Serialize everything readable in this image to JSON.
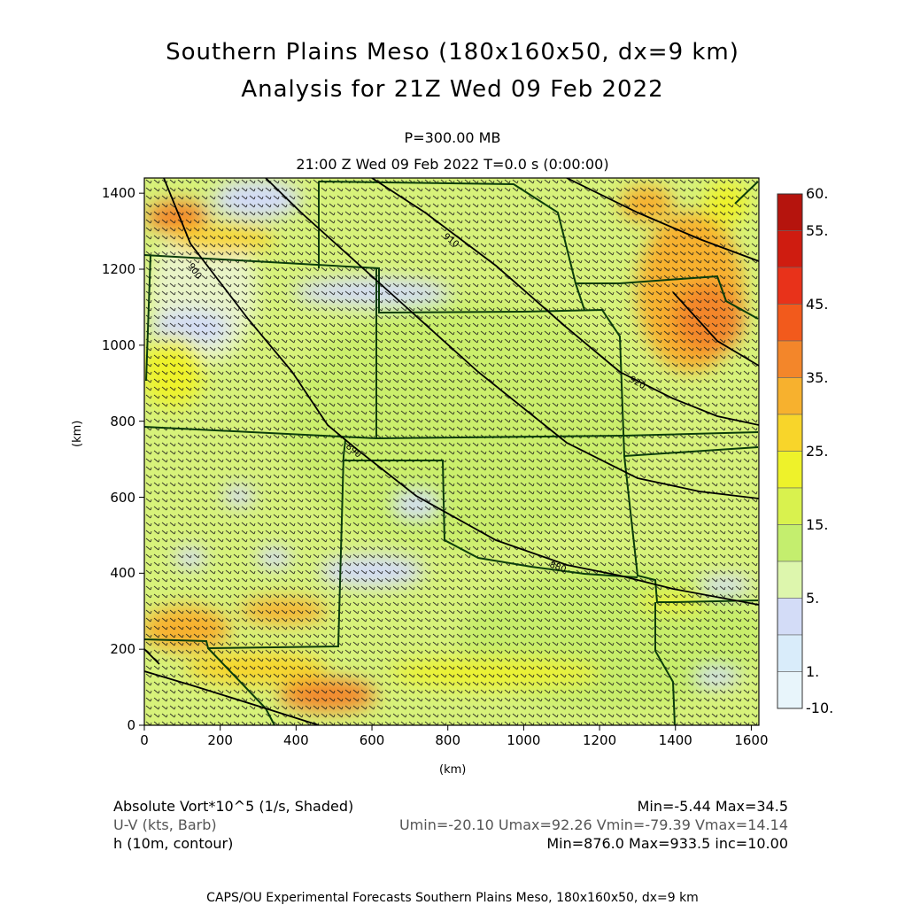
{
  "header": {
    "title_line1": "Southern Plains Meso (180x160x50, dx=9 km)",
    "title_line2": "Analysis for 21Z Wed 09 Feb 2022",
    "level": "P=300.00 MB",
    "time": "21:00 Z Wed 09 Feb 2022    T=0.0 s (0:00:00)"
  },
  "axes": {
    "ylabel": "(km)",
    "xlabel": "(km)",
    "yticks": [
      "0",
      "200",
      "400",
      "600",
      "800",
      "1000",
      "1200",
      "1400"
    ],
    "xticks": [
      "0",
      "200",
      "400",
      "600",
      "800",
      "1000",
      "1200",
      "1400",
      "1600"
    ],
    "xlim": [
      0,
      1620
    ],
    "ylim": [
      0,
      1440
    ]
  },
  "colorbar": {
    "labels": [
      "60.",
      "55.",
      "45.",
      "35.",
      "25.",
      "15.",
      "5.",
      "1.",
      "-10."
    ],
    "colors": [
      "#b5140d",
      "#cf1c10",
      "#e8321a",
      "#f25a1c",
      "#f3862a",
      "#f7b12e",
      "#f8d52a",
      "#eef22a",
      "#d9f24e",
      "#c4ee6e",
      "#ddf6ad",
      "#d3dcf7",
      "#d9ecfa",
      "#e8f5fb"
    ]
  },
  "legend": {
    "row1_label": "Absolute Vort*10^5 (1/s, Shaded)",
    "row1_stats": "Min=-5.44 Max=34.5",
    "row2_label": "U-V (kts, Barb)",
    "row2_stats": "Umin=-20.10 Umax=92.26 Vmin=-79.39 Vmax=14.14",
    "row3_label": "h (10m, contour)",
    "row3_stats": "Min=876.0 Max=933.5 inc=10.00"
  },
  "footer": "CAPS/OU Experimental Forecasts  Southern Plains Meso, 180x160x50, dx=9 km",
  "contours": [
    "880",
    "890",
    "900",
    "910",
    "920",
    "930"
  ]
}
